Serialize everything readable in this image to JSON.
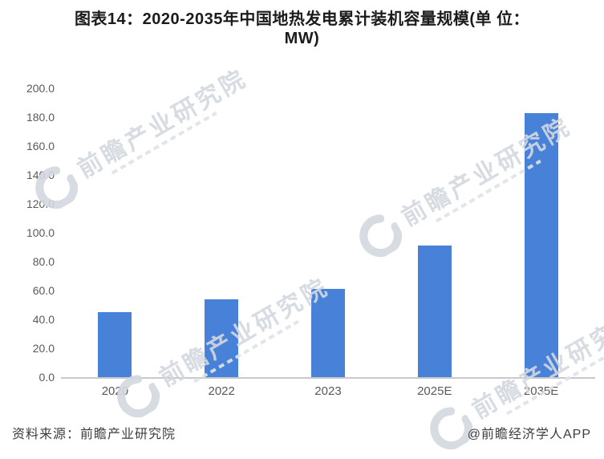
{
  "title": {
    "line1": "图表14：2020-2035年中国地热发电累计装机容量规模(单 位：",
    "line2": "MW)",
    "full": "图表14：2020-2035年中国地热发电累计装机容量规模(单位：MW)"
  },
  "chart_data": {
    "type": "bar",
    "title": "2020-2035年中国地热发电累计装机容量规模",
    "unit": "MW",
    "categories": [
      "2020",
      "2022",
      "2023",
      "2025E",
      "2035E"
    ],
    "values": [
      45,
      54,
      61,
      91,
      183
    ],
    "ylim": [
      0,
      200
    ],
    "ytick_labels": [
      "0.0",
      "20.0",
      "40.0",
      "60.0",
      "80.0",
      "100.0",
      "120.0",
      "140.0",
      "160.0",
      "180.0",
      "200.0"
    ],
    "xlabel": "",
    "ylabel": "",
    "grid": false,
    "legend": false,
    "bar_color": "#4881d8",
    "axis_line_color": "#c9c9c9",
    "tick_label_color": "#595959"
  },
  "watermark": {
    "text": "前瞻产业研究院",
    "color": "#d3d8df",
    "logo_icon": "qianzhan-swoosh-icon"
  },
  "footer": {
    "source": "资料来源：前瞻产业研究院",
    "credit": "@前瞻经济学人APP"
  }
}
